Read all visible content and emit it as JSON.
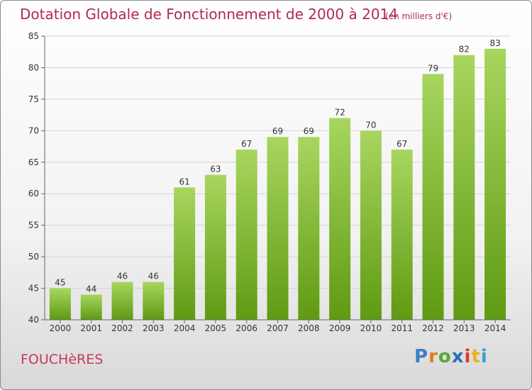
{
  "header": {
    "title": "Dotation Globale de Fonctionnement de 2000 à 2014",
    "unit": "(en milliers d'€)"
  },
  "footer": {
    "commune": "FOUCHèRES",
    "logo": "Proxiti"
  },
  "colors": {
    "title": "#b22a4a",
    "bar_light": "#a3d15a",
    "bar_dark": "#5f9a12",
    "grid": "#d4d4d4",
    "axis": "#666666"
  },
  "chart_data": {
    "type": "bar",
    "categories": [
      "2000",
      "2001",
      "2002",
      "2003",
      "2004",
      "2005",
      "2006",
      "2007",
      "2008",
      "2009",
      "2010",
      "2011",
      "2012",
      "2013",
      "2014"
    ],
    "values": [
      45,
      44,
      46,
      46,
      61,
      63,
      67,
      69,
      69,
      72,
      70,
      67,
      79,
      82,
      83
    ],
    "ylim": [
      40,
      85
    ],
    "yticks": [
      40,
      45,
      50,
      55,
      60,
      65,
      70,
      75,
      80,
      85
    ],
    "grid": true,
    "data_labels": true
  }
}
